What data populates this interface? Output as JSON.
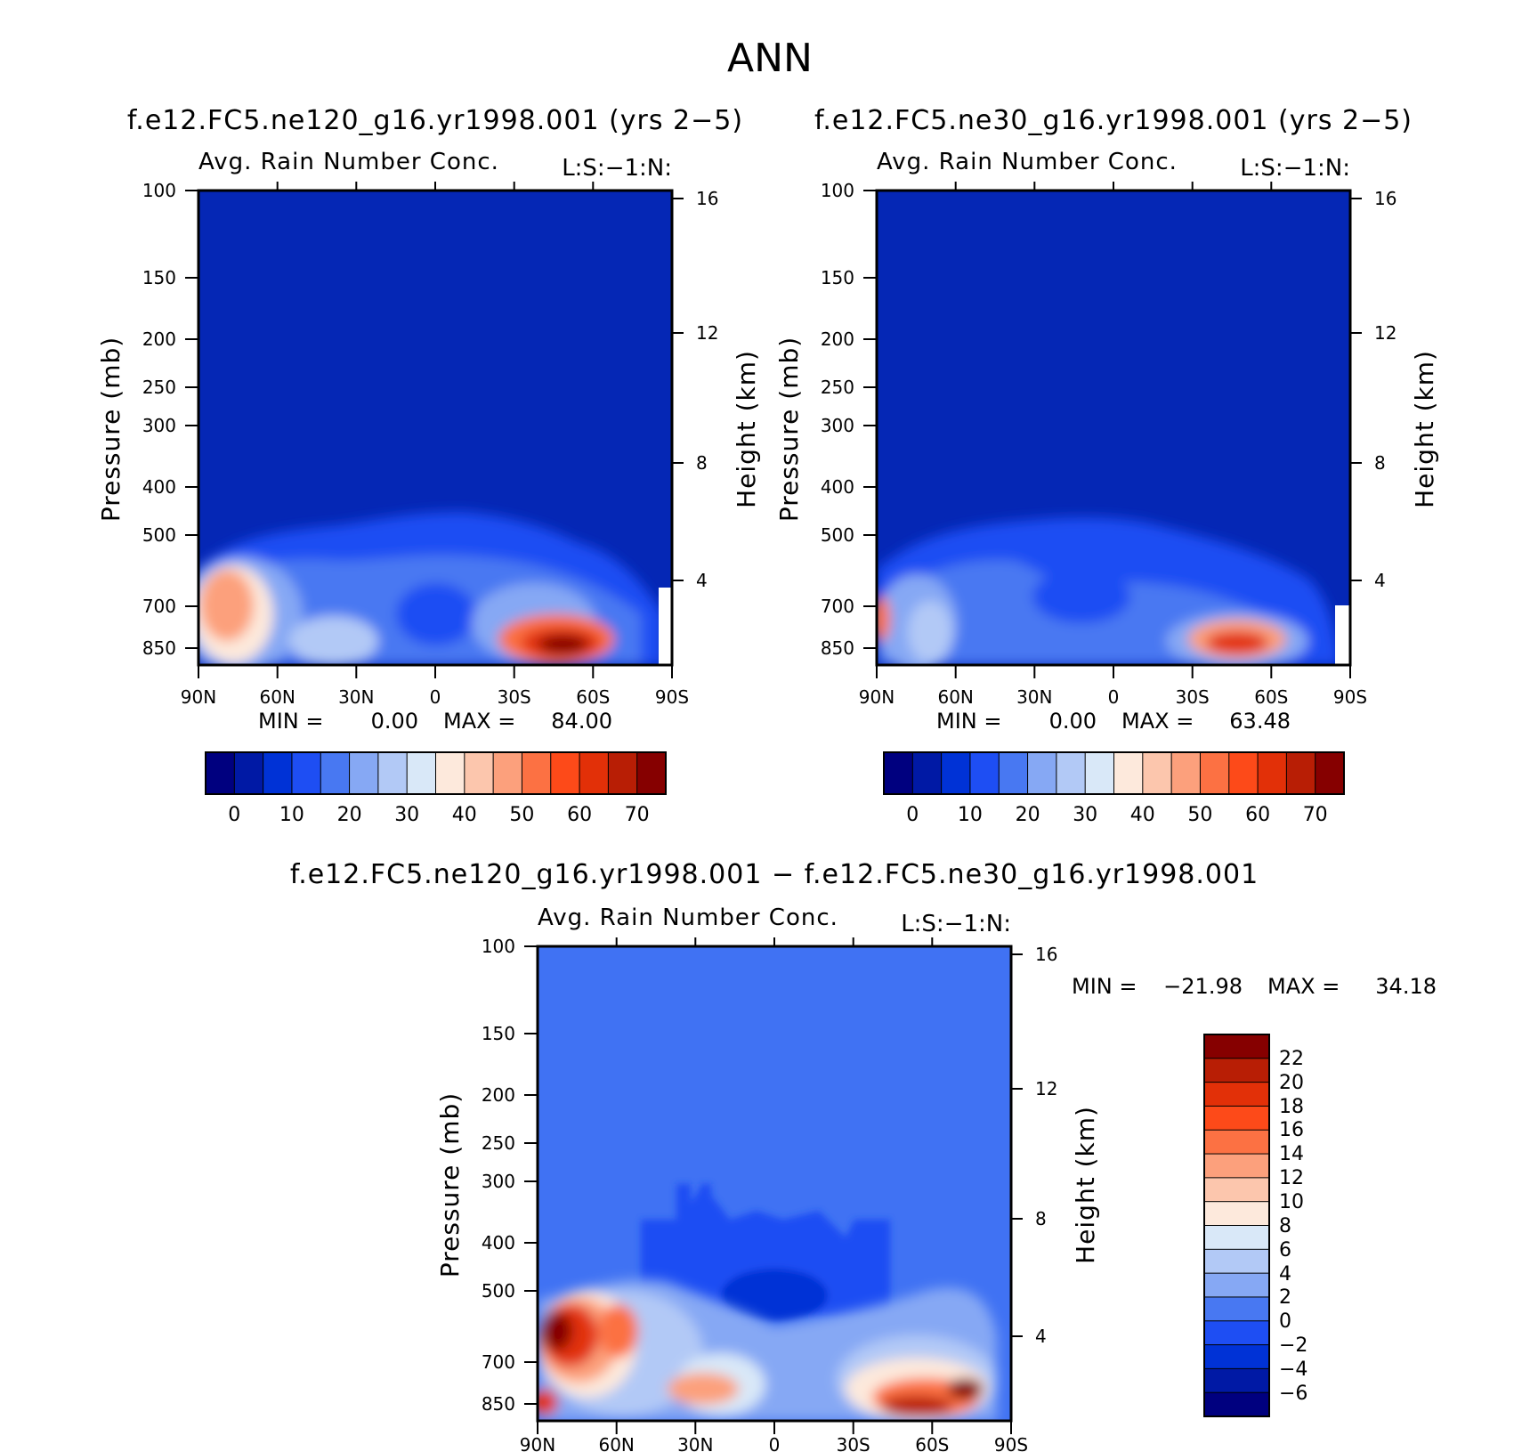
{
  "page_title": "ANN",
  "colors": {
    "abs_scale": [
      "#00007f",
      "#0019a5",
      "#0032d6",
      "#1e4ef3",
      "#4878f2",
      "#86a8f4",
      "#b2c9f6",
      "#d9e8f8",
      "#fde9dc",
      "#fcc6ad",
      "#fca07c",
      "#fc7143",
      "#fd4a19",
      "#e23008",
      "#b81e05",
      "#860000"
    ],
    "diff_scale": [
      "#00007f",
      "#0019a5",
      "#0032d6",
      "#1e4ef3",
      "#4878f2",
      "#86a8f4",
      "#b2c9f6",
      "#d9e8f8",
      "#fde9dc",
      "#fcc6ad",
      "#fca07c",
      "#fc7143",
      "#fd4a19",
      "#e23008",
      "#b81e05",
      "#860000"
    ]
  },
  "chart_data": [
    {
      "type": "heatmap",
      "title": "f.e12.FC5.ne120_g16.yr1998.001 (yrs 2−5)",
      "subtitle": "Avg. Rain Number Conc.",
      "annotation": "L:S:−1:N:",
      "ylabel": "Pressure (mb)",
      "ylabel_right": "Height (km)",
      "x_ticks": [
        "90N",
        "60N",
        "30N",
        "0",
        "30S",
        "60S",
        "90S"
      ],
      "y_ticks": [
        "100",
        "150",
        "200",
        "250",
        "300",
        "400",
        "500",
        "700",
        "850"
      ],
      "y_ticks_right": [
        "16",
        "12",
        "8",
        "4"
      ],
      "min_label": "MIN =",
      "min_value": "0.00",
      "max_label": "MAX =",
      "max_value": "84.00",
      "min": 0.0,
      "max": 84.0,
      "colorbar_labels": [
        "0",
        "10",
        "20",
        "30",
        "40",
        "50",
        "60",
        "70"
      ],
      "colorbar_levels": [
        0,
        5,
        10,
        15,
        20,
        25,
        30,
        35,
        40,
        45,
        50,
        55,
        60,
        65,
        70
      ],
      "x": [
        90,
        -90
      ],
      "ylim": [
        100,
        850
      ],
      "ylog": true,
      "grid": false
    },
    {
      "type": "heatmap",
      "title": "f.e12.FC5.ne30_g16.yr1998.001 (yrs 2−5)",
      "subtitle": "Avg. Rain Number Conc.",
      "annotation": "L:S:−1:N:",
      "ylabel": "Pressure (mb)",
      "ylabel_right": "Height (km)",
      "x_ticks": [
        "90N",
        "60N",
        "30N",
        "0",
        "30S",
        "60S",
        "90S"
      ],
      "y_ticks": [
        "100",
        "150",
        "200",
        "250",
        "300",
        "400",
        "500",
        "700",
        "850"
      ],
      "y_ticks_right": [
        "16",
        "12",
        "8",
        "4"
      ],
      "min_label": "MIN =",
      "min_value": "0.00",
      "max_label": "MAX =",
      "max_value": "63.48",
      "min": 0.0,
      "max": 63.48,
      "colorbar_labels": [
        "0",
        "10",
        "20",
        "30",
        "40",
        "50",
        "60",
        "70"
      ],
      "colorbar_levels": [
        0,
        5,
        10,
        15,
        20,
        25,
        30,
        35,
        40,
        45,
        50,
        55,
        60,
        65,
        70
      ],
      "x": [
        90,
        -90
      ],
      "ylim": [
        100,
        850
      ],
      "ylog": true,
      "grid": false
    },
    {
      "type": "heatmap",
      "title": "f.e12.FC5.ne120_g16.yr1998.001 − f.e12.FC5.ne30_g16.yr1998.001",
      "subtitle": "Avg. Rain Number Conc.",
      "annotation": "L:S:−1:N:",
      "ylabel": "Pressure (mb)",
      "ylabel_right": "Height (km)",
      "x_ticks": [
        "90N",
        "60N",
        "30N",
        "0",
        "30S",
        "60S",
        "90S"
      ],
      "y_ticks": [
        "100",
        "150",
        "200",
        "250",
        "300",
        "400",
        "500",
        "700",
        "850"
      ],
      "y_ticks_right": [
        "16",
        "12",
        "8",
        "4"
      ],
      "min_label": "MIN =",
      "min_value": "−21.98",
      "max_label": "MAX =",
      "max_value": "34.18",
      "min": -21.98,
      "max": 34.18,
      "colorbar_labels": [
        "22",
        "20",
        "18",
        "16",
        "14",
        "12",
        "10",
        "8",
        "6",
        "4",
        "2",
        "0",
        "−2",
        "−4",
        "−6"
      ],
      "colorbar_levels": [
        -6,
        -4,
        -2,
        0,
        2,
        4,
        6,
        8,
        10,
        12,
        14,
        16,
        18,
        20,
        22
      ],
      "x": [
        90,
        -90
      ],
      "ylim": [
        100,
        850
      ],
      "ylog": true,
      "grid": false
    }
  ]
}
